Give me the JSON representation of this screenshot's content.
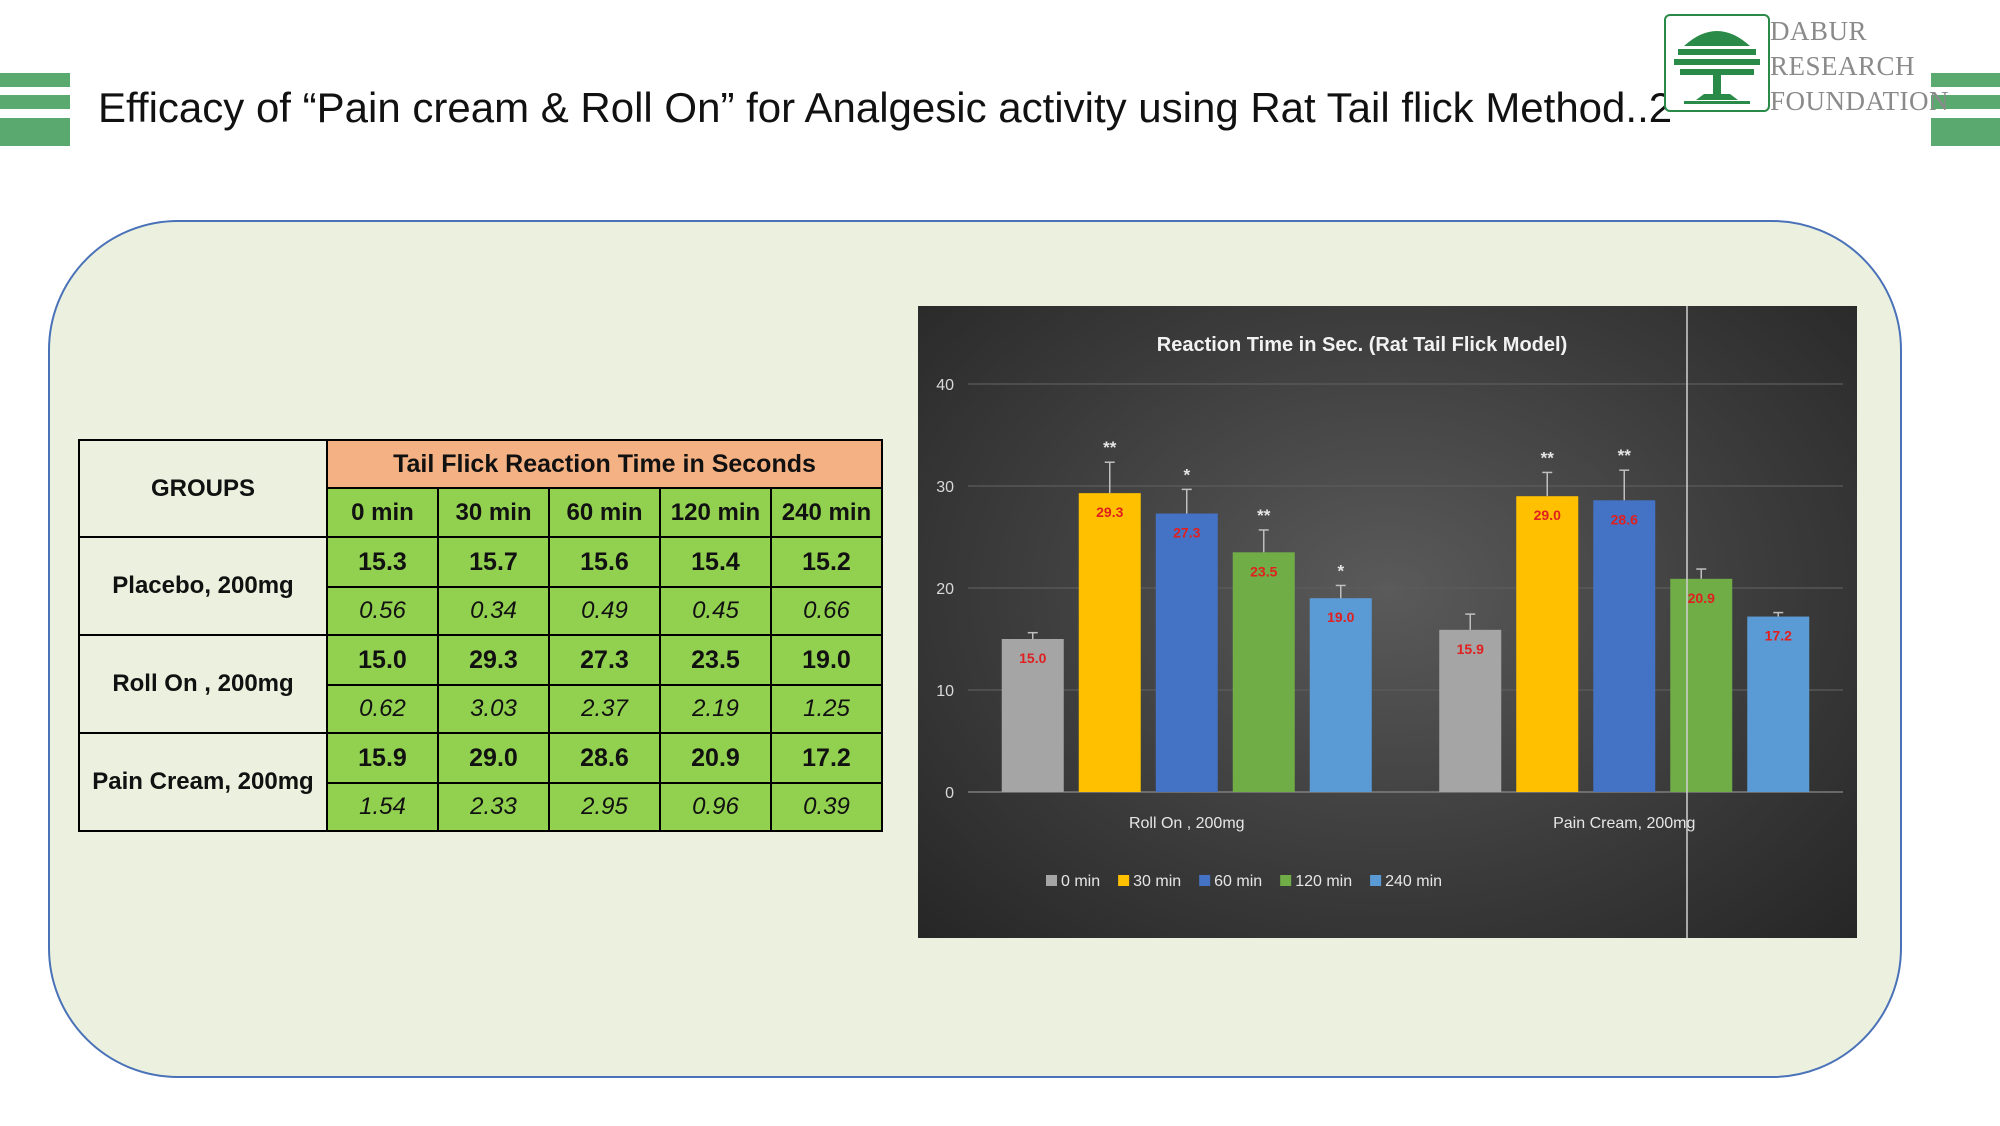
{
  "slide": {
    "title": "Efficacy of “Pain cream & Roll On” for Analgesic activity using Rat Tail flick Method..2"
  },
  "logo": {
    "icon": "tree-icon",
    "lines": [
      "DABUR",
      "RESEARCH",
      "FOUNDATION"
    ]
  },
  "colors": {
    "accent_green": "#5aaa6f",
    "panel_bg": "#ebf1de",
    "table_header": "#f4b183",
    "table_cells": "#92d050"
  },
  "table": {
    "group_header": "GROUPS",
    "main_header": "Tail Flick Reaction Time in Seconds",
    "time_headers": [
      "0 min",
      "30 min",
      "60 min",
      "120 min",
      "240 min"
    ],
    "rows": [
      {
        "group": "Placebo, 200mg",
        "means": [
          "15.3",
          "15.7",
          "15.6",
          "15.4",
          "15.2"
        ],
        "sds": [
          "0.56",
          "0.34",
          "0.49",
          "0.45",
          "0.66"
        ]
      },
      {
        "group": "Roll On , 200mg",
        "means": [
          "15.0",
          "29.3",
          "27.3",
          "23.5",
          "19.0"
        ],
        "sds": [
          "0.62",
          "3.03",
          "2.37",
          "2.19",
          "1.25"
        ]
      },
      {
        "group": "Pain Cream, 200mg",
        "means": [
          "15.9",
          "29.0",
          "28.6",
          "20.9",
          "17.2"
        ],
        "sds": [
          "1.54",
          "2.33",
          "2.95",
          "0.96",
          "0.39"
        ]
      }
    ]
  },
  "chart_data": {
    "type": "bar",
    "title": "Reaction Time in Sec. (Rat Tail Flick Model)",
    "categories": [
      "Roll On , 200mg",
      "Pain Cream, 200mg"
    ],
    "ylim": [
      0,
      40
    ],
    "yticks": [
      0,
      10,
      20,
      30,
      40
    ],
    "grid": true,
    "legend_position": "bottom",
    "series": [
      {
        "name": "0 min",
        "color": "#a5a5a5",
        "values": [
          15.0,
          15.9
        ],
        "errors": [
          0.62,
          1.54
        ],
        "labels": [
          "15.0",
          "15.9"
        ],
        "sig": [
          "",
          ""
        ]
      },
      {
        "name": "30 min",
        "color": "#ffc000",
        "values": [
          29.3,
          29.0
        ],
        "errors": [
          3.03,
          2.33
        ],
        "labels": [
          "29.3",
          "29.0"
        ],
        "sig": [
          "**",
          "**"
        ]
      },
      {
        "name": "60 min",
        "color": "#4472c4",
        "values": [
          27.3,
          28.6
        ],
        "errors": [
          2.37,
          2.95
        ],
        "labels": [
          "27.3",
          "28.6"
        ],
        "sig": [
          "*",
          "**"
        ]
      },
      {
        "name": "120 min",
        "color": "#70ad47",
        "values": [
          23.5,
          20.9
        ],
        "errors": [
          2.19,
          0.96
        ],
        "labels": [
          "23.5",
          "20.9"
        ],
        "sig": [
          "**",
          ""
        ]
      },
      {
        "name": "240 min",
        "color": "#5b9bd5",
        "values": [
          19.0,
          17.2
        ],
        "errors": [
          1.25,
          0.39
        ],
        "labels": [
          "19.0",
          "17.2"
        ],
        "sig": [
          "*",
          ""
        ]
      }
    ]
  }
}
